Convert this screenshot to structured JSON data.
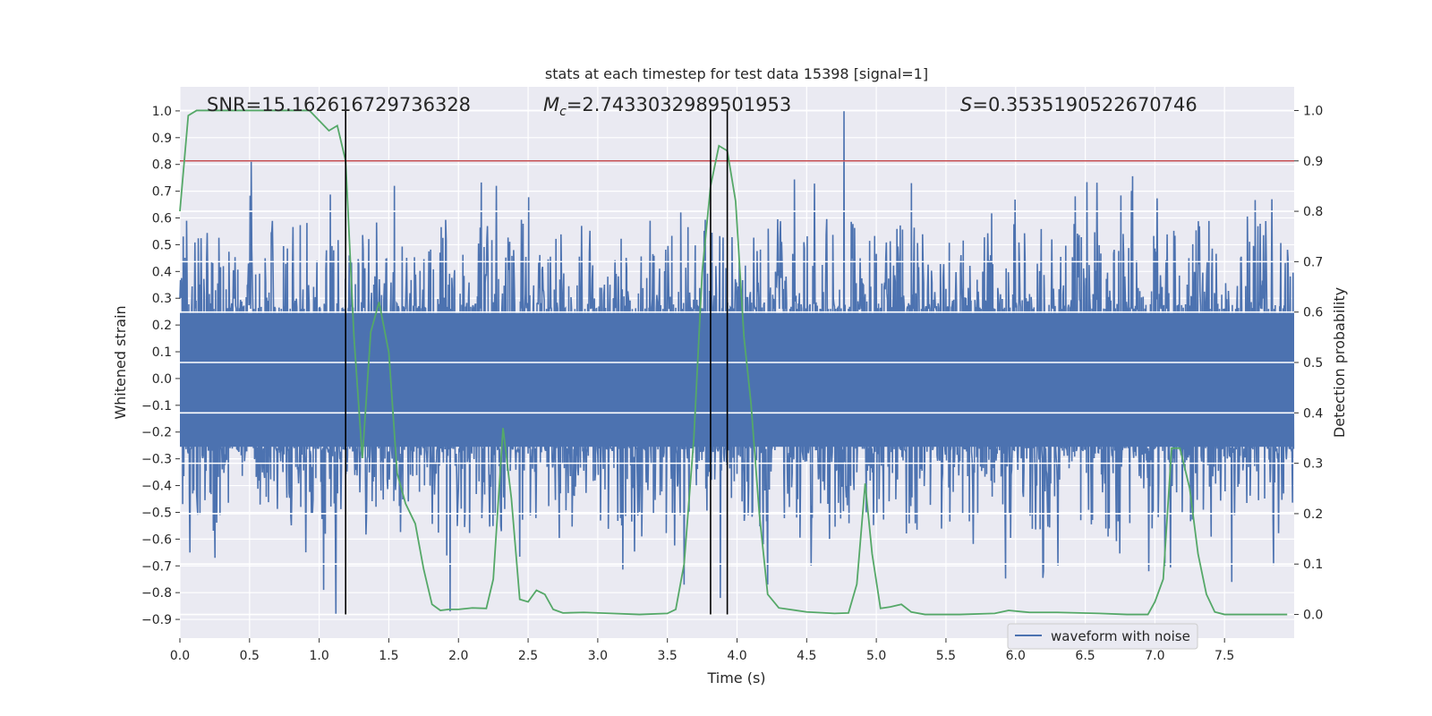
{
  "chart_data": {
    "type": "line",
    "title": "stats at each timestep for test data 15398 [signal=1]",
    "xlabel": "Time (s)",
    "ylabel": "Whitened strain",
    "y2label": "Detection probability",
    "xlim": [
      0.0,
      8.0
    ],
    "ylim": [
      -0.97,
      1.09
    ],
    "y2lim": [
      -0.047,
      1.047
    ],
    "grid": true,
    "x_ticks": [
      0.0,
      0.5,
      1.0,
      1.5,
      2.0,
      2.5,
      3.0,
      3.5,
      4.0,
      4.5,
      5.0,
      5.5,
      6.0,
      6.5,
      7.0,
      7.5
    ],
    "x_tick_labels": [
      "0.0",
      "0.5",
      "1.0",
      "1.5",
      "2.0",
      "2.5",
      "3.0",
      "3.5",
      "4.0",
      "4.5",
      "5.0",
      "5.5",
      "6.0",
      "6.5",
      "7.0",
      "7.5"
    ],
    "y_ticks": [
      1.0,
      0.9,
      0.8,
      0.7,
      0.6,
      0.5,
      0.4,
      0.3,
      0.2,
      0.1,
      0.0,
      -0.1,
      -0.2,
      -0.3,
      -0.4,
      -0.5,
      -0.6,
      -0.7,
      -0.8,
      -0.9
    ],
    "y_tick_labels": [
      "1.0",
      "0.9",
      "0.8",
      "0.7",
      "0.6",
      "0.5",
      "0.4",
      "0.3",
      "0.2",
      "0.1",
      "0.0",
      "−0.1",
      "−0.2",
      "−0.3",
      "−0.4",
      "−0.5",
      "−0.6",
      "−0.7",
      "−0.8",
      "−0.9"
    ],
    "y2_ticks": [
      1.0,
      0.9,
      0.8,
      0.7,
      0.6,
      0.5,
      0.4,
      0.3,
      0.2,
      0.1,
      0.0
    ],
    "y2_tick_labels": [
      "1.0",
      "0.9",
      "0.8",
      "0.7",
      "0.6",
      "0.5",
      "0.4",
      "0.3",
      "0.2",
      "0.1",
      "0.0"
    ],
    "annotations": {
      "snr": "SNR=15.162616729736328",
      "mc_symbol": "M",
      "mc_subscript": "c",
      "mc_value": "=2.7433032989501953",
      "s_symbol": "S",
      "s_value": "=0.3535190522670746"
    },
    "threshold_probability": 0.9,
    "vertical_markers": [
      1.19,
      3.81,
      3.93
    ],
    "legend": {
      "label": "waveform with noise",
      "placement": "lower-right"
    },
    "series": [
      {
        "name": "waveform with noise",
        "axis": "left",
        "color": "#4c72b0",
        "description": "noisy whitened strain, mostly within ±0.45 with spikes",
        "samples": 2000,
        "noise_core": 0.3,
        "spikes": [
          {
            "x": 0.51,
            "y": 0.81
          },
          {
            "x": 1.12,
            "y": -0.88
          },
          {
            "x": 1.03,
            "y": -0.79
          },
          {
            "x": 1.54,
            "y": 0.72
          },
          {
            "x": 1.94,
            "y": -0.87
          },
          {
            "x": 2.27,
            "y": 0.72
          },
          {
            "x": 3.62,
            "y": -0.77
          },
          {
            "x": 3.88,
            "y": -0.82
          },
          {
            "x": 4.77,
            "y": 1.0
          },
          {
            "x": 4.22,
            "y": -0.77
          },
          {
            "x": 5.25,
            "y": 0.73
          },
          {
            "x": 6.2,
            "y": -0.72
          },
          {
            "x": 7.07,
            "y": -0.7
          },
          {
            "x": 7.55,
            "y": -0.76
          },
          {
            "x": 7.84,
            "y": 0.67
          },
          {
            "x": 0.07,
            "y": -0.65
          },
          {
            "x": 0.25,
            "y": -0.67
          }
        ]
      },
      {
        "name": "detection probability",
        "axis": "right",
        "color": "#55a868",
        "x": [
          0.0,
          0.06,
          0.12,
          0.2,
          0.4,
          0.6,
          0.8,
          0.93,
          1.0,
          1.07,
          1.13,
          1.19,
          1.25,
          1.31,
          1.37,
          1.43,
          1.5,
          1.56,
          1.62,
          1.69,
          1.75,
          1.81,
          1.87,
          1.93,
          2.0,
          2.1,
          2.2,
          2.25,
          2.32,
          2.38,
          2.44,
          2.5,
          2.56,
          2.62,
          2.68,
          2.75,
          2.9,
          3.1,
          3.3,
          3.5,
          3.56,
          3.62,
          3.69,
          3.75,
          3.81,
          3.87,
          3.93,
          3.99,
          4.05,
          4.1,
          4.16,
          4.22,
          4.3,
          4.5,
          4.7,
          4.8,
          4.86,
          4.92,
          4.97,
          5.03,
          5.1,
          5.18,
          5.25,
          5.35,
          5.6,
          5.85,
          5.95,
          6.1,
          6.3,
          6.6,
          6.8,
          6.95,
          7.0,
          7.06,
          7.12,
          7.18,
          7.25,
          7.31,
          7.37,
          7.43,
          7.5,
          7.7,
          7.95
        ],
        "y": [
          0.8,
          0.99,
          1.0,
          1.0,
          1.0,
          1.0,
          1.0,
          1.0,
          0.98,
          0.96,
          0.97,
          0.9,
          0.55,
          0.31,
          0.56,
          0.62,
          0.52,
          0.28,
          0.22,
          0.18,
          0.09,
          0.02,
          0.008,
          0.01,
          0.01,
          0.013,
          0.012,
          0.07,
          0.37,
          0.23,
          0.03,
          0.025,
          0.048,
          0.04,
          0.01,
          0.003,
          0.004,
          0.002,
          0.0,
          0.002,
          0.01,
          0.1,
          0.35,
          0.68,
          0.85,
          0.93,
          0.92,
          0.82,
          0.55,
          0.42,
          0.2,
          0.04,
          0.013,
          0.005,
          0.002,
          0.003,
          0.06,
          0.26,
          0.12,
          0.012,
          0.015,
          0.02,
          0.005,
          0.0,
          0.0,
          0.002,
          0.008,
          0.004,
          0.004,
          0.002,
          0.0,
          0.0,
          0.025,
          0.07,
          0.33,
          0.33,
          0.25,
          0.12,
          0.04,
          0.005,
          0.0,
          0.0,
          0.0
        ]
      }
    ],
    "threshold_color": "#c44e52",
    "marker_color": "#000000",
    "plot_background": "#eaeaf2"
  }
}
